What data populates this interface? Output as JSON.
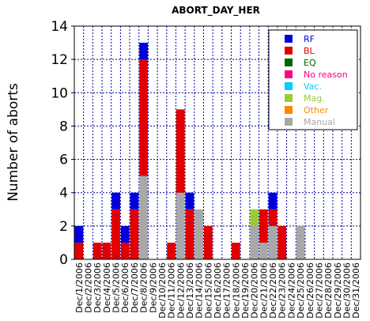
{
  "chart_data": {
    "type": "bar",
    "stacked": true,
    "title": "ABORT_DAY_HER",
    "xlabel": "",
    "ylabel": "Number of aborts",
    "ylim": [
      0,
      14
    ],
    "yticks": [
      0,
      2,
      4,
      6,
      8,
      10,
      12,
      14
    ],
    "grid": true,
    "legend_position": "top-right",
    "categories": [
      "Dec/1/2006",
      "Dec/2/2006",
      "Dec/3/2006",
      "Dec/4/2006",
      "Dec/5/2006",
      "Dec/6/2006",
      "Dec/7/2006",
      "Dec/8/2006",
      "Dec/9/2006",
      "Dec/10/2006",
      "Dec/11/2006",
      "Dec/12/2006",
      "Dec/13/2006",
      "Dec/14/2006",
      "Dec/15/2006",
      "Dec/16/2006",
      "Dec/17/2006",
      "Dec/18/2006",
      "Dec/19/2006",
      "Dec/20/2006",
      "Dec/21/2006",
      "Dec/22/2006",
      "Dec/23/2006",
      "Dec/24/2006",
      "Dec/25/2006",
      "Dec/26/2006",
      "Dec/27/2006",
      "Dec/28/2006",
      "Dec/29/2006",
      "Dec/30/2006",
      "Dec/31/2006"
    ],
    "series": [
      {
        "name": "Manual",
        "color": "#a8a8a8",
        "values": [
          0,
          0,
          0,
          0,
          0,
          0,
          0,
          5,
          0,
          0,
          0,
          4,
          0,
          3,
          0,
          0,
          0,
          0,
          0,
          2,
          1,
          2,
          0,
          0,
          2,
          0,
          0,
          0,
          0,
          0,
          0
        ]
      },
      {
        "name": "Mag.",
        "color": "#99cc33",
        "values": [
          0,
          0,
          0,
          0,
          0,
          0,
          0,
          0,
          0,
          0,
          0,
          0,
          0,
          0,
          0,
          0,
          0,
          0,
          0,
          1,
          0,
          0,
          0,
          0,
          0,
          0,
          0,
          0,
          0,
          0,
          0
        ]
      },
      {
        "name": "BL",
        "color": "#e00000",
        "values": [
          1,
          0,
          1,
          1,
          3,
          1,
          3,
          7,
          0,
          0,
          1,
          5,
          3,
          0,
          2,
          0,
          0,
          1,
          0,
          0,
          2,
          1,
          2,
          0,
          0,
          0,
          0,
          0,
          0,
          0,
          0
        ]
      },
      {
        "name": "RF",
        "color": "#0000dd",
        "values": [
          1,
          0,
          0,
          0,
          1,
          1,
          1,
          1,
          0,
          0,
          0,
          0,
          1,
          0,
          0,
          0,
          0,
          0,
          0,
          0,
          0,
          1,
          0,
          0,
          0,
          0,
          0,
          0,
          0,
          0,
          0
        ]
      },
      {
        "name": "EQ",
        "color": "#006600",
        "values": [
          0,
          0,
          0,
          0,
          0,
          0,
          0,
          0,
          0,
          0,
          0,
          0,
          0,
          0,
          0,
          0,
          0,
          0,
          0,
          0,
          0,
          0,
          0,
          0,
          0,
          0,
          0,
          0,
          0,
          0,
          0
        ]
      },
      {
        "name": "No reason",
        "color": "#ff0080",
        "values": [
          0,
          0,
          0,
          0,
          0,
          0,
          0,
          0,
          0,
          0,
          0,
          0,
          0,
          0,
          0,
          0,
          0,
          0,
          0,
          0,
          0,
          0,
          0,
          0,
          0,
          0,
          0,
          0,
          0,
          0,
          0
        ]
      },
      {
        "name": "Vac.",
        "color": "#00ccff",
        "values": [
          0,
          0,
          0,
          0,
          0,
          0,
          0,
          0,
          0,
          0,
          0,
          0,
          0,
          0,
          0,
          0,
          0,
          0,
          0,
          0,
          0,
          0,
          0,
          0,
          0,
          0,
          0,
          0,
          0,
          0,
          0
        ]
      },
      {
        "name": "Other",
        "color": "#ff8800",
        "values": [
          0,
          0,
          0,
          0,
          0,
          0,
          0,
          0,
          0,
          0,
          0,
          0,
          0,
          0,
          0,
          0,
          0,
          0,
          0,
          0,
          0,
          0,
          0,
          0,
          0,
          0,
          0,
          0,
          0,
          0,
          0
        ]
      }
    ],
    "legend": [
      {
        "label": "RF",
        "color": "#0000dd"
      },
      {
        "label": "BL",
        "color": "#e00000"
      },
      {
        "label": "EQ",
        "color": "#006600"
      },
      {
        "label": "No reason",
        "color": "#ff0080"
      },
      {
        "label": "Vac.",
        "color": "#00ccff"
      },
      {
        "label": "Mag.",
        "color": "#99cc33"
      },
      {
        "label": "Other",
        "color": "#ff8800"
      },
      {
        "label": "Manual",
        "color": "#a8a8a8"
      }
    ]
  }
}
